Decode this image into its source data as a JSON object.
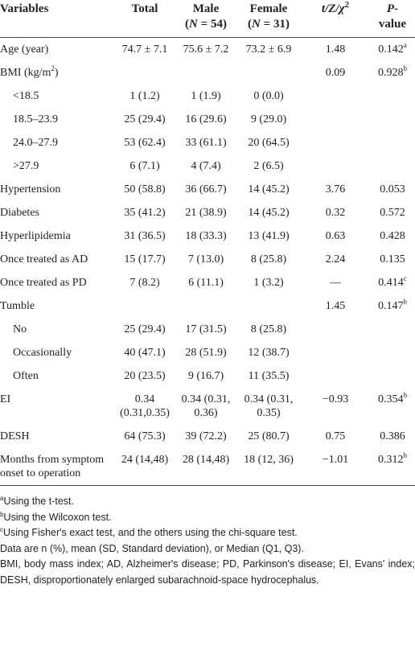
{
  "table": {
    "header": [
      {
        "text": "Variables"
      },
      {
        "text": "Total"
      },
      {
        "text": "Male",
        "sub": [
          "(",
          "N",
          " = 54)"
        ]
      },
      {
        "text": "Female",
        "sub": [
          "(",
          "N",
          " = 31)"
        ]
      },
      {
        "text": "t/Z/χ",
        "sup": "2"
      },
      {
        "text": "P-",
        "line2": "value"
      }
    ],
    "rows": [
      {
        "cells": [
          "Age (year)",
          "74.7 ± 7.1",
          "75.6 ± 7.2",
          "73.2 ± 6.9",
          "1.48",
          {
            "text": "0.142",
            "sup": "a"
          }
        ]
      },
      {
        "cells": [
          {
            "text": "BMI (kg/m",
            "sup": "2",
            "after": ")"
          },
          null,
          null,
          null,
          "0.09",
          {
            "text": "0.928",
            "sup": "b"
          }
        ]
      },
      {
        "indent": true,
        "cells": [
          "<18.5",
          "1 (1.2)",
          "1 (1.9)",
          "0 (0.0)",
          null,
          null
        ]
      },
      {
        "indent": true,
        "cells": [
          "18.5–23.9",
          "25 (29.4)",
          "16 (29.6)",
          "9 (29.0)",
          null,
          null
        ]
      },
      {
        "indent": true,
        "cells": [
          "24.0–27.9",
          "53 (62.4)",
          "33 (61.1)",
          "20 (64.5)",
          null,
          null
        ]
      },
      {
        "indent": true,
        "cells": [
          ">27.9",
          "6 (7.1)",
          "4 (7.4)",
          "2 (6.5)",
          null,
          null
        ]
      },
      {
        "cells": [
          "Hypertension",
          "50 (58.8)",
          "36 (66.7)",
          "14 (45.2)",
          "3.76",
          "0.053"
        ]
      },
      {
        "cells": [
          "Diabetes",
          "35 (41.2)",
          "21 (38.9)",
          "14 (45.2)",
          "0.32",
          "0.572"
        ]
      },
      {
        "cells": [
          "Hyperlipidemia",
          "31 (36.5)",
          "18 (33.3)",
          "13 (41.9)",
          "0.63",
          "0.428"
        ]
      },
      {
        "cells": [
          "Once treated as AD",
          "15 (17.7)",
          "7 (13.0)",
          "8 (25.8)",
          "2.24",
          "0.135"
        ]
      },
      {
        "cells": [
          "Once treated as PD",
          "7 (8.2)",
          "6 (11.1)",
          "1 (3.2)",
          "—",
          {
            "text": "0.414",
            "sup": "c"
          }
        ]
      },
      {
        "cells": [
          "Tumble",
          null,
          null,
          null,
          "1.45",
          {
            "text": "0.147",
            "sup": "b"
          }
        ]
      },
      {
        "indent": true,
        "cells": [
          "No",
          "25 (29.4)",
          "17 (31.5)",
          "8 (25.8)",
          null,
          null
        ]
      },
      {
        "indent": true,
        "cells": [
          "Occasionally",
          "40 (47.1)",
          "28 (51.9)",
          "12 (38.7)",
          null,
          null
        ]
      },
      {
        "indent": true,
        "cells": [
          "Often",
          "20 (23.5)",
          "9 (16.7)",
          "11 (35.5)",
          null,
          null
        ]
      },
      {
        "cells": [
          "EI",
          "0.34 (0.31,0.35)",
          "0.34 (0.31, 0.36)",
          "0.34 (0.31, 0.35)",
          "−0.93",
          {
            "text": "0.354",
            "sup": "b"
          }
        ]
      },
      {
        "cells": [
          "DESH",
          "64 (75.3)",
          "39 (72.2)",
          "25 (80.7)",
          "0.75",
          "0.386"
        ]
      },
      {
        "cells": [
          "Months from symptom onset to operation",
          "24 (14,48)",
          "28 (14,48)",
          "18 (12, 36)",
          "−1.01",
          {
            "text": "0.312",
            "sup": "b"
          }
        ]
      }
    ]
  },
  "footnotes": [
    {
      "mark": "a",
      "text": "Using the t-test."
    },
    {
      "mark": "b",
      "text": "Using the Wilcoxon test."
    },
    {
      "mark": "c",
      "text": "Using Fisher's exact test, and the others using the chi-square test."
    },
    {
      "text": "Data are n (%), mean (SD, Standard deviation), or Median (Q1, Q3)."
    },
    {
      "text": "BMI, body mass index; AD, Alzheimer's disease; PD, Parkinson's disease; EI, Evans' index; DESH, disproportionately enlarged subarachnoid-space hydrocephalus."
    }
  ]
}
